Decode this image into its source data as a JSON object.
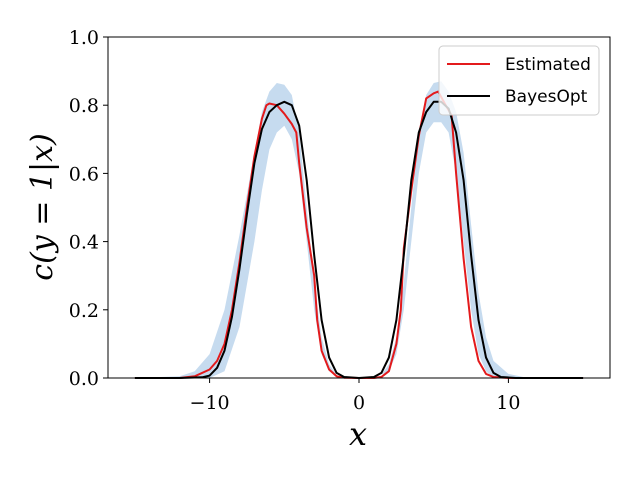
{
  "chart_data": {
    "type": "line",
    "xlabel": "x",
    "ylabel": "c(y = 1|x)",
    "xlim": [
      -16.8,
      16.8
    ],
    "ylim": [
      0.0,
      1.0
    ],
    "xticks": [
      -10,
      0,
      10
    ],
    "xtick_labels": [
      "−10",
      "0",
      "10"
    ],
    "yticks": [
      0.0,
      0.2,
      0.4,
      0.6,
      0.8,
      1.0
    ],
    "ytick_labels": [
      "0.0",
      "0.2",
      "0.4",
      "0.6",
      "0.8",
      "1.0"
    ],
    "grid": false,
    "legend_position": "top-right",
    "band": {
      "color": "#c6dbef",
      "upper": [
        [
          -15,
          0.0
        ],
        [
          -12,
          0.005
        ],
        [
          -11,
          0.02
        ],
        [
          -10,
          0.07
        ],
        [
          -9,
          0.2
        ],
        [
          -8,
          0.42
        ],
        [
          -7,
          0.66
        ],
        [
          -6.5,
          0.78
        ],
        [
          -6,
          0.84
        ],
        [
          -5.5,
          0.865
        ],
        [
          -5,
          0.86
        ],
        [
          -4.5,
          0.83
        ],
        [
          -4,
          0.72
        ],
        [
          -3.5,
          0.5
        ],
        [
          -3,
          0.28
        ],
        [
          -2.5,
          0.12
        ],
        [
          -2,
          0.04
        ],
        [
          -1.5,
          0.01
        ],
        [
          -1,
          0.003
        ],
        [
          0,
          0.0
        ],
        [
          1,
          0.003
        ],
        [
          1.5,
          0.01
        ],
        [
          2,
          0.04
        ],
        [
          2.5,
          0.12
        ],
        [
          3,
          0.28
        ],
        [
          3.5,
          0.5
        ],
        [
          4,
          0.72
        ],
        [
          4.5,
          0.83
        ],
        [
          5,
          0.865
        ],
        [
          5.5,
          0.87
        ],
        [
          6,
          0.84
        ],
        [
          6.5,
          0.78
        ],
        [
          7,
          0.66
        ],
        [
          7.5,
          0.45
        ],
        [
          8,
          0.25
        ],
        [
          8.5,
          0.12
        ],
        [
          9,
          0.05
        ],
        [
          10,
          0.012
        ],
        [
          11,
          0.003
        ],
        [
          12,
          0.0
        ],
        [
          15,
          0.0
        ]
      ],
      "lower": [
        [
          -15,
          0.0
        ],
        [
          -10,
          0.0
        ],
        [
          -9,
          0.02
        ],
        [
          -8,
          0.15
        ],
        [
          -7,
          0.4
        ],
        [
          -6.5,
          0.55
        ],
        [
          -6,
          0.67
        ],
        [
          -5.5,
          0.72
        ],
        [
          -5,
          0.74
        ],
        [
          -4.5,
          0.7
        ],
        [
          -4,
          0.6
        ],
        [
          -3.5,
          0.4
        ],
        [
          -3,
          0.2
        ],
        [
          -2.5,
          0.07
        ],
        [
          -2,
          0.02
        ],
        [
          -1,
          0.0
        ],
        [
          1,
          0.0
        ],
        [
          2,
          0.02
        ],
        [
          2.5,
          0.07
        ],
        [
          3,
          0.2
        ],
        [
          3.5,
          0.4
        ],
        [
          4,
          0.6
        ],
        [
          4.5,
          0.72
        ],
        [
          5,
          0.75
        ],
        [
          5.5,
          0.75
        ],
        [
          6,
          0.72
        ],
        [
          6.5,
          0.6
        ],
        [
          7,
          0.4
        ],
        [
          7.5,
          0.2
        ],
        [
          8,
          0.07
        ],
        [
          8.5,
          0.02
        ],
        [
          9,
          0.0
        ],
        [
          15,
          0.0
        ]
      ]
    },
    "series": [
      {
        "name": "Estimated",
        "color": "#e31a1c",
        "points": [
          [
            -15,
            0.0
          ],
          [
            -12,
            0.0
          ],
          [
            -11,
            0.005
          ],
          [
            -10,
            0.025
          ],
          [
            -9.5,
            0.05
          ],
          [
            -9,
            0.1
          ],
          [
            -8.5,
            0.2
          ],
          [
            -8,
            0.34
          ],
          [
            -7.5,
            0.5
          ],
          [
            -7,
            0.65
          ],
          [
            -6.5,
            0.76
          ],
          [
            -6.2,
            0.8
          ],
          [
            -6,
            0.805
          ],
          [
            -5.5,
            0.8
          ],
          [
            -5,
            0.775
          ],
          [
            -4.5,
            0.745
          ],
          [
            -4.2,
            0.72
          ],
          [
            -4,
            0.63
          ],
          [
            -3.5,
            0.44
          ],
          [
            -3,
            0.3
          ],
          [
            -2.8,
            0.17
          ],
          [
            -2.5,
            0.08
          ],
          [
            -2,
            0.025
          ],
          [
            -1.5,
            0.005
          ],
          [
            -1,
            0.001
          ],
          [
            0,
            0.0
          ],
          [
            1,
            0.0
          ],
          [
            1.5,
            0.003
          ],
          [
            2,
            0.02
          ],
          [
            2.5,
            0.1
          ],
          [
            2.8,
            0.2
          ],
          [
            3,
            0.38
          ],
          [
            3.5,
            0.55
          ],
          [
            4,
            0.71
          ],
          [
            4.5,
            0.82
          ],
          [
            5,
            0.835
          ],
          [
            5.3,
            0.84
          ],
          [
            5.8,
            0.8
          ],
          [
            6.2,
            0.77
          ],
          [
            6.5,
            0.6
          ],
          [
            7,
            0.35
          ],
          [
            7.5,
            0.15
          ],
          [
            8,
            0.05
          ],
          [
            8.5,
            0.012
          ],
          [
            9,
            0.003
          ],
          [
            10,
            0.0
          ],
          [
            15,
            0.0
          ]
        ]
      },
      {
        "name": "BayesOpt",
        "color": "#000000",
        "points": [
          [
            -15,
            0.0
          ],
          [
            -12,
            0.0
          ],
          [
            -10.5,
            0.002
          ],
          [
            -10,
            0.007
          ],
          [
            -9.5,
            0.03
          ],
          [
            -9,
            0.08
          ],
          [
            -8.5,
            0.18
          ],
          [
            -8,
            0.32
          ],
          [
            -7.5,
            0.48
          ],
          [
            -7,
            0.63
          ],
          [
            -6.5,
            0.73
          ],
          [
            -6,
            0.78
          ],
          [
            -5.5,
            0.8
          ],
          [
            -5,
            0.81
          ],
          [
            -4.5,
            0.8
          ],
          [
            -4,
            0.74
          ],
          [
            -3.5,
            0.58
          ],
          [
            -3,
            0.36
          ],
          [
            -2.5,
            0.17
          ],
          [
            -2,
            0.06
          ],
          [
            -1.5,
            0.015
          ],
          [
            -1,
            0.003
          ],
          [
            0,
            0.0
          ],
          [
            1,
            0.003
          ],
          [
            1.5,
            0.015
          ],
          [
            2,
            0.06
          ],
          [
            2.5,
            0.17
          ],
          [
            3,
            0.36
          ],
          [
            3.5,
            0.58
          ],
          [
            4,
            0.72
          ],
          [
            4.5,
            0.78
          ],
          [
            5,
            0.81
          ],
          [
            5.5,
            0.81
          ],
          [
            6,
            0.79
          ],
          [
            6.5,
            0.72
          ],
          [
            7,
            0.58
          ],
          [
            7.5,
            0.36
          ],
          [
            8,
            0.17
          ],
          [
            8.5,
            0.06
          ],
          [
            9,
            0.015
          ],
          [
            9.5,
            0.003
          ],
          [
            10.5,
            0.0
          ],
          [
            15,
            0.0
          ]
        ]
      }
    ]
  }
}
